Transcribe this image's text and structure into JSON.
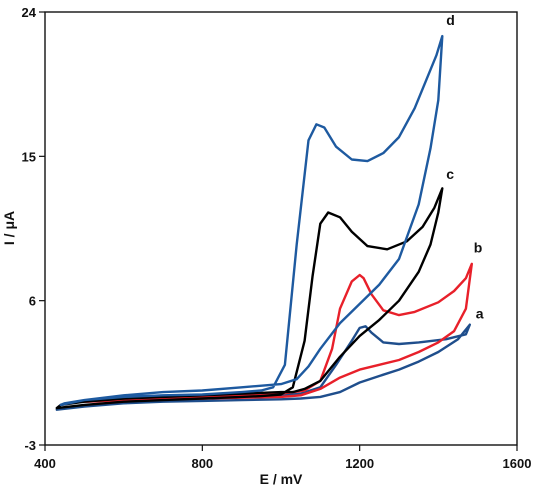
{
  "chart_data": {
    "type": "line",
    "title": "",
    "xlabel": "E / mV",
    "ylabel": "I / μA",
    "xlim": [
      400,
      1600
    ],
    "ylim": [
      -3,
      24
    ],
    "xticks": [
      400,
      800,
      1200,
      1600
    ],
    "yticks": [
      -3,
      6,
      15,
      24
    ],
    "grid": false,
    "legend": "none",
    "series": [
      {
        "label": "a",
        "color": "#1f4e8c",
        "x": [
          430,
          500,
          600,
          700,
          800,
          900,
          1000,
          1050,
          1100,
          1150,
          1200,
          1250,
          1300,
          1350,
          1400,
          1450,
          1480,
          1470,
          1420,
          1350,
          1300,
          1260,
          1230,
          1215,
          1200,
          1180,
          1140,
          1100,
          1050,
          1000,
          900,
          800,
          700,
          600,
          500,
          440,
          430
        ],
        "y": [
          -0.8,
          -0.6,
          -0.4,
          -0.3,
          -0.25,
          -0.2,
          -0.15,
          -0.1,
          0.0,
          0.3,
          0.9,
          1.3,
          1.7,
          2.2,
          2.8,
          3.6,
          4.5,
          3.9,
          3.6,
          3.4,
          3.3,
          3.4,
          4.0,
          4.4,
          4.3,
          3.5,
          2.0,
          0.6,
          0.2,
          0.1,
          0.0,
          -0.1,
          -0.2,
          -0.4,
          -0.6,
          -0.7,
          -0.8
        ]
      },
      {
        "label": "b",
        "color": "#e8202a",
        "x": [
          500,
          600,
          700,
          800,
          900,
          1000,
          1050,
          1100,
          1150,
          1200,
          1250,
          1300,
          1350,
          1400,
          1440,
          1470,
          1485,
          1470,
          1440,
          1400,
          1340,
          1300,
          1260,
          1230,
          1210,
          1200,
          1180,
          1150,
          1130,
          1100,
          1060,
          1000,
          900,
          800,
          700,
          600,
          510,
          500
        ],
        "y": [
          -0.3,
          -0.2,
          -0.15,
          -0.1,
          -0.05,
          0.0,
          0.1,
          0.5,
          1.2,
          1.7,
          2.0,
          2.3,
          2.8,
          3.4,
          4.1,
          5.5,
          8.3,
          7.4,
          6.6,
          5.9,
          5.3,
          5.1,
          5.4,
          6.4,
          7.4,
          7.6,
          7.2,
          5.5,
          3.0,
          1.0,
          0.4,
          0.2,
          0.1,
          0.0,
          -0.1,
          -0.2,
          -0.3,
          -0.3
        ]
      },
      {
        "label": "c",
        "color": "#000000",
        "x": [
          430,
          500,
          600,
          700,
          800,
          900,
          950,
          1000,
          1030,
          1060,
          1080,
          1100,
          1120,
          1150,
          1180,
          1220,
          1270,
          1320,
          1360,
          1390,
          1410,
          1400,
          1380,
          1350,
          1300,
          1250,
          1200,
          1150,
          1100,
          1060,
          1030,
          1000,
          900,
          800,
          700,
          600,
          500,
          440,
          430
        ],
        "y": [
          -0.7,
          -0.5,
          -0.3,
          -0.2,
          -0.1,
          0.0,
          0.05,
          0.15,
          0.6,
          3.5,
          7.5,
          10.8,
          11.5,
          11.2,
          10.3,
          9.4,
          9.2,
          9.7,
          10.6,
          11.8,
          13.0,
          11.5,
          9.5,
          7.8,
          6.0,
          4.8,
          3.8,
          2.5,
          1.0,
          0.5,
          0.3,
          0.3,
          0.2,
          0.1,
          0.0,
          -0.1,
          -0.3,
          -0.5,
          -0.7
        ]
      },
      {
        "label": "d",
        "color": "#1e5aa0",
        "x": [
          440,
          500,
          600,
          700,
          800,
          900,
          950,
          980,
          1010,
          1040,
          1070,
          1090,
          1110,
          1140,
          1180,
          1220,
          1260,
          1300,
          1340,
          1370,
          1395,
          1410,
          1400,
          1380,
          1350,
          1300,
          1250,
          1200,
          1150,
          1100,
          1070,
          1040,
          1000,
          900,
          800,
          700,
          600,
          500,
          450,
          440
        ],
        "y": [
          -0.5,
          -0.2,
          0.0,
          0.1,
          0.15,
          0.3,
          0.4,
          0.6,
          2.0,
          9.5,
          16.0,
          17.0,
          16.8,
          15.6,
          14.8,
          14.7,
          15.2,
          16.2,
          18.0,
          19.8,
          21.3,
          22.5,
          18.5,
          15.5,
          12.0,
          8.6,
          7.0,
          5.8,
          4.6,
          3.0,
          1.9,
          1.1,
          0.8,
          0.6,
          0.4,
          0.3,
          0.1,
          -0.2,
          -0.4,
          -0.5
        ]
      }
    ],
    "annotations": [
      {
        "text": "a",
        "x": 1495,
        "y": 4.9
      },
      {
        "text": "b",
        "x": 1490,
        "y": 9.0
      },
      {
        "text": "c",
        "x": 1420,
        "y": 13.6
      },
      {
        "text": "d",
        "x": 1420,
        "y": 23.2
      }
    ]
  }
}
